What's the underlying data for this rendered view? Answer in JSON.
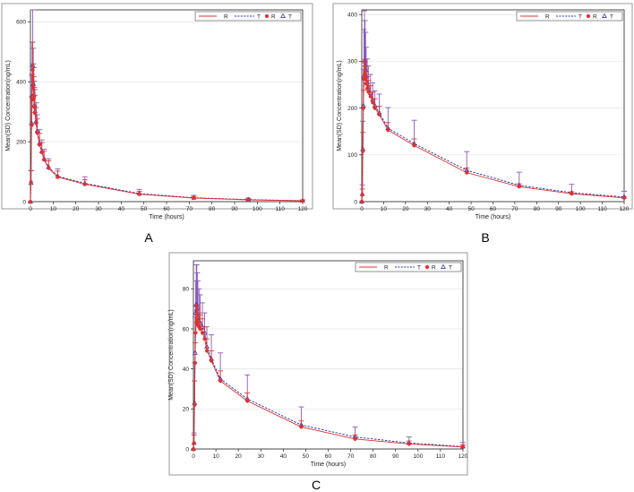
{
  "colors": {
    "ref": "#e0312f",
    "test": "#2430b0",
    "errT": "#8a5ab8",
    "errR": "#d93a3a"
  },
  "chart_data": [
    {
      "type": "line",
      "panel_label": "A",
      "xlabel": "Time (hours)",
      "ylabel": "Mean(SD) Concentration(ng/mL)",
      "xlim": [
        0,
        120
      ],
      "ylim": [
        0,
        640
      ],
      "xticks": [
        0,
        10,
        20,
        30,
        40,
        50,
        60,
        70,
        80,
        90,
        100,
        110,
        120
      ],
      "yticks": [
        0,
        200,
        400,
        600
      ],
      "legend": {
        "position": "top-right",
        "line_R": "R",
        "line_T": "T",
        "marker_R": "R",
        "marker_T": "T"
      },
      "x": [
        0,
        0.25,
        0.5,
        0.75,
        1,
        1.25,
        1.5,
        1.75,
        2,
        2.5,
        3,
        4,
        5,
        6,
        8,
        12,
        24,
        48,
        72,
        96,
        120
      ],
      "series": [
        {
          "name": "R",
          "values": [
            0,
            65,
            255,
            340,
            440,
            380,
            345,
            315,
            295,
            262,
            230,
            190,
            165,
            140,
            112,
            82,
            58,
            25,
            12,
            6,
            3
          ],
          "sd": [
            0,
            38,
            95,
            85,
            92,
            80,
            72,
            66,
            60,
            52,
            46,
            38,
            32,
            28,
            24,
            20,
            15,
            9,
            5,
            3,
            2
          ]
        },
        {
          "name": "T",
          "values": [
            0,
            62,
            262,
            352,
            455,
            392,
            355,
            322,
            302,
            268,
            236,
            195,
            168,
            143,
            115,
            85,
            61,
            27,
            13,
            7,
            3
          ],
          "sd": [
            0,
            42,
            160,
            180,
            185,
            120,
            92,
            80,
            72,
            62,
            54,
            45,
            38,
            32,
            28,
            24,
            22,
            14,
            8,
            5,
            3
          ]
        }
      ]
    },
    {
      "type": "line",
      "panel_label": "B",
      "xlabel": "Time (hours)",
      "ylabel": "Mean(SD) Concentration(ng/mL)",
      "xlim": [
        0,
        120
      ],
      "ylim": [
        0,
        410
      ],
      "xticks": [
        0,
        10,
        20,
        30,
        40,
        50,
        60,
        70,
        80,
        90,
        100,
        110,
        120
      ],
      "yticks": [
        0,
        100,
        200,
        300,
        400
      ],
      "legend": {
        "position": "top-right",
        "line_R": "R",
        "line_T": "T",
        "marker_R": "R",
        "marker_T": "T"
      },
      "x": [
        0,
        0.25,
        0.5,
        0.75,
        1,
        1.25,
        1.5,
        1.75,
        2,
        2.5,
        3,
        4,
        5,
        6,
        8,
        12,
        24,
        48,
        72,
        96,
        120
      ],
      "series": [
        {
          "name": "R",
          "values": [
            0,
            15,
            108,
            200,
            262,
            272,
            270,
            262,
            252,
            242,
            235,
            225,
            212,
            200,
            186,
            153,
            120,
            62,
            32,
            17,
            8
          ],
          "sd": [
            0,
            12,
            40,
            38,
            35,
            32,
            30,
            28,
            26,
            25,
            24,
            23,
            22,
            20,
            18,
            16,
            14,
            10,
            6,
            4,
            3
          ]
        },
        {
          "name": "T",
          "values": [
            0,
            16,
            112,
            205,
            268,
            300,
            292,
            282,
            268,
            255,
            245,
            232,
            218,
            205,
            190,
            157,
            124,
            67,
            35,
            19,
            10
          ],
          "sd": [
            0,
            20,
            60,
            78,
            100,
            108,
            95,
            80,
            62,
            50,
            45,
            40,
            36,
            32,
            40,
            44,
            50,
            40,
            28,
            18,
            12
          ]
        }
      ]
    },
    {
      "type": "line",
      "panel_label": "C",
      "xlabel": "Time (hours)",
      "ylabel": "Mean(SD) Concentration(ng/mL)",
      "xlim": [
        0,
        120
      ],
      "ylim": [
        0,
        94
      ],
      "xticks": [
        0,
        10,
        20,
        30,
        40,
        50,
        60,
        70,
        80,
        90,
        100,
        110,
        120
      ],
      "yticks": [
        0,
        20,
        40,
        60,
        80
      ],
      "legend": {
        "position": "top-right",
        "line_R": "R",
        "line_T": "T",
        "marker_R": "R",
        "marker_T": "T"
      },
      "x": [
        0,
        0.25,
        0.5,
        0.75,
        1,
        1.25,
        1.5,
        1.75,
        2,
        2.5,
        3,
        4,
        5,
        6,
        8,
        12,
        24,
        48,
        72,
        96,
        120
      ],
      "series": [
        {
          "name": "R",
          "values": [
            0,
            3,
            22,
            43,
            58,
            63,
            64,
            63,
            62,
            61,
            60,
            58,
            55,
            49,
            44,
            34,
            24,
            11,
            5,
            2.5,
            1
          ],
          "sd": [
            0,
            4,
            12,
            10,
            9,
            9,
            8,
            8,
            8,
            7,
            7,
            7,
            6,
            6,
            5,
            5,
            4,
            3,
            2,
            1.5,
            1
          ]
        },
        {
          "name": "T",
          "values": [
            0,
            3,
            23,
            48,
            68,
            72,
            70,
            68,
            66,
            64,
            63,
            61,
            58,
            51,
            45,
            35,
            25,
            12,
            6,
            3,
            1.2
          ],
          "sd": [
            0,
            5,
            20,
            18,
            16,
            20,
            22,
            20,
            18,
            16,
            14,
            12,
            10,
            10,
            12,
            13,
            12,
            9,
            5,
            3,
            2
          ]
        }
      ]
    }
  ]
}
